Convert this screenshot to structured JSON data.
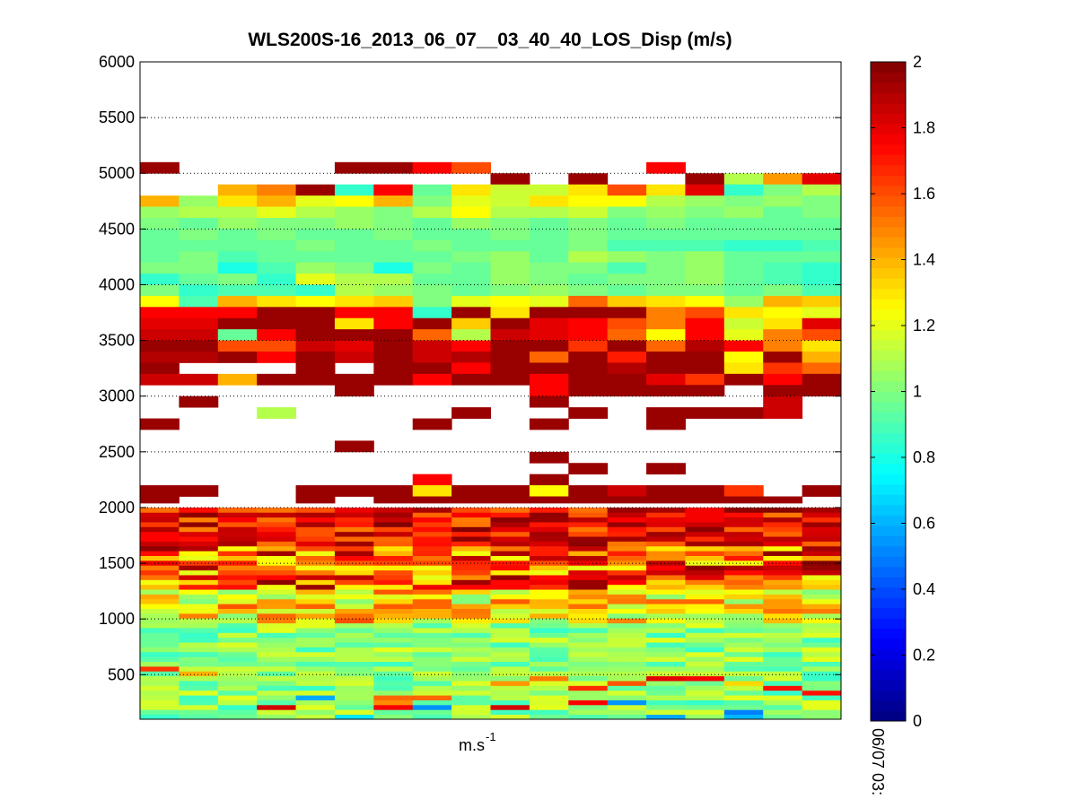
{
  "chart_data": {
    "type": "heatmap",
    "title": "WLS200S-16_2013_06_07__03_40_40_LOS_Disp (m/s)",
    "xlabel": "m.s",
    "xlabel_sup": "-1",
    "time_label": "06/07 03:",
    "ylabel": "",
    "ylim": [
      100,
      6000
    ],
    "yticks": [
      500,
      1000,
      1500,
      2000,
      2500,
      3000,
      3500,
      4000,
      4500,
      5000,
      5500,
      6000
    ],
    "grid": "dotted horizontal",
    "colorbar": {
      "min": 0,
      "max": 2,
      "ticks": [
        "0",
        "0.2",
        "0.4",
        "0.6",
        "0.8",
        "1",
        "1.2",
        "1.4",
        "1.6",
        "1.8",
        "2"
      ],
      "colormap": "jet"
    },
    "columns": 18,
    "rows": [
      {
        "z": 5050,
        "dz": 100,
        "v": [
          1.95,
          null,
          null,
          null,
          null,
          1.95,
          1.95,
          1.75,
          1.6,
          null,
          null,
          null,
          null,
          1.75,
          null,
          null,
          null,
          null
        ]
      },
      {
        "z": 4950,
        "dz": 100,
        "v": [
          null,
          null,
          null,
          null,
          null,
          null,
          null,
          null,
          null,
          1.95,
          null,
          1.95,
          null,
          null,
          1.95,
          1.1,
          1.45,
          1.8
        ]
      },
      {
        "z": 4850,
        "dz": 100,
        "v": [
          null,
          null,
          1.4,
          1.5,
          1.95,
          0.85,
          1.75,
          0.95,
          1.3,
          1.15,
          1.15,
          1.3,
          1.6,
          1.3,
          1.8,
          0.85,
          1.0,
          1.1
        ]
      },
      {
        "z": 4750,
        "dz": 100,
        "v": [
          1.4,
          1.05,
          1.3,
          1.4,
          1.2,
          1.25,
          1.4,
          1.0,
          1.2,
          1.15,
          1.3,
          1.25,
          1.25,
          1.1,
          1.05,
          1.0,
          1.05,
          1.0
        ]
      },
      {
        "z": 4650,
        "dz": 100,
        "v": [
          1.05,
          1.1,
          1.1,
          1.2,
          1.1,
          1.05,
          1.0,
          1.1,
          1.25,
          1.1,
          1.1,
          1.15,
          1.0,
          1.05,
          1.0,
          1.05,
          0.95,
          1.0
        ]
      },
      {
        "z": 4550,
        "dz": 100,
        "v": [
          1.0,
          0.95,
          1.05,
          1.0,
          1.0,
          1.05,
          1.0,
          0.95,
          1.05,
          1.0,
          0.95,
          1.0,
          0.95,
          1.0,
          0.95,
          0.95,
          0.95,
          0.95
        ]
      },
      {
        "z": 4450,
        "dz": 100,
        "v": [
          0.95,
          1.0,
          0.95,
          1.0,
          0.95,
          0.95,
          1.0,
          0.95,
          0.95,
          1.0,
          0.95,
          1.0,
          0.95,
          0.95,
          0.95,
          0.95,
          0.95,
          0.95
        ]
      },
      {
        "z": 4350,
        "dz": 100,
        "v": [
          0.95,
          0.95,
          0.95,
          0.95,
          1.0,
          0.95,
          0.95,
          1.0,
          0.95,
          0.95,
          0.95,
          1.0,
          0.9,
          0.9,
          0.9,
          0.85,
          0.85,
          0.9
        ]
      },
      {
        "z": 4250,
        "dz": 100,
        "v": [
          0.95,
          1.0,
          0.9,
          0.95,
          0.95,
          0.95,
          0.95,
          0.95,
          1.0,
          1.05,
          0.95,
          1.1,
          1.05,
          1.0,
          1.05,
          0.95,
          0.95,
          0.95
        ]
      },
      {
        "z": 4150,
        "dz": 100,
        "v": [
          1.0,
          1.0,
          0.8,
          0.9,
          1.05,
          1.0,
          0.8,
          1.0,
          0.95,
          1.05,
          1.0,
          1.0,
          0.9,
          1.0,
          1.05,
          0.95,
          0.9,
          0.85
        ]
      },
      {
        "z": 4050,
        "dz": 100,
        "v": [
          0.85,
          0.95,
          1.0,
          0.85,
          1.2,
          1.1,
          1.1,
          0.95,
          0.95,
          1.05,
          1.0,
          0.95,
          1.0,
          1.0,
          1.05,
          0.95,
          0.9,
          0.85
        ]
      },
      {
        "z": 3950,
        "dz": 100,
        "v": [
          1.0,
          0.85,
          0.9,
          0.9,
          0.85,
          1.1,
          1.05,
          1.0,
          0.95,
          1.0,
          1.05,
          1.0,
          0.95,
          1.0,
          1.0,
          0.95,
          1.0,
          0.9
        ]
      },
      {
        "z": 3850,
        "dz": 100,
        "v": [
          1.25,
          0.9,
          1.4,
          1.3,
          1.25,
          1.3,
          1.35,
          1.0,
          1.2,
          1.25,
          1.2,
          1.55,
          1.35,
          1.3,
          1.25,
          1.05,
          1.4,
          1.35
        ]
      },
      {
        "z": 3750,
        "dz": 100,
        "v": [
          1.75,
          1.75,
          1.75,
          1.95,
          1.95,
          1.75,
          1.75,
          0.85,
          1.95,
          1.3,
          1.95,
          1.95,
          1.95,
          1.5,
          1.6,
          1.3,
          1.25,
          1.2
        ]
      },
      {
        "z": 3650,
        "dz": 100,
        "v": [
          1.8,
          1.8,
          1.95,
          1.95,
          1.95,
          1.3,
          1.75,
          1.95,
          1.35,
          1.95,
          1.8,
          1.75,
          1.6,
          1.5,
          1.75,
          1.15,
          1.3,
          1.8
        ]
      },
      {
        "z": 3550,
        "dz": 100,
        "v": [
          1.85,
          1.85,
          0.95,
          1.75,
          1.95,
          1.95,
          1.95,
          1.55,
          1.1,
          1.85,
          1.8,
          1.75,
          1.55,
          1.25,
          1.75,
          1.2,
          1.5,
          1.6
        ]
      },
      {
        "z": 3450,
        "dz": 100,
        "v": [
          1.95,
          1.95,
          1.6,
          1.6,
          1.85,
          1.8,
          1.95,
          1.85,
          1.75,
          1.95,
          1.95,
          1.65,
          1.95,
          1.55,
          1.9,
          1.75,
          1.5,
          1.3
        ]
      },
      {
        "z": 3350,
        "dz": 100,
        "v": [
          1.9,
          1.9,
          1.95,
          1.75,
          1.95,
          1.85,
          1.95,
          1.85,
          1.9,
          1.95,
          1.55,
          1.95,
          1.7,
          1.95,
          1.95,
          1.25,
          1.95,
          1.4
        ]
      },
      {
        "z": 3250,
        "dz": 100,
        "v": [
          1.95,
          null,
          null,
          null,
          1.95,
          null,
          1.95,
          1.95,
          1.75,
          1.95,
          1.95,
          1.95,
          1.9,
          1.95,
          1.95,
          1.3,
          1.65,
          1.55
        ]
      },
      {
        "z": 3150,
        "dz": 100,
        "v": [
          1.85,
          1.85,
          1.4,
          1.95,
          1.95,
          1.95,
          1.95,
          1.75,
          1.95,
          1.95,
          1.75,
          1.95,
          1.95,
          1.8,
          1.65,
          1.95,
          1.75,
          1.95
        ]
      },
      {
        "z": 3050,
        "dz": 100,
        "v": [
          null,
          null,
          null,
          null,
          null,
          1.95,
          null,
          null,
          null,
          null,
          1.75,
          1.95,
          1.95,
          1.95,
          1.95,
          null,
          1.95,
          1.95
        ]
      },
      {
        "z": 2950,
        "dz": 100,
        "v": [
          null,
          1.95,
          null,
          null,
          null,
          null,
          null,
          null,
          null,
          null,
          1.95,
          null,
          null,
          null,
          null,
          null,
          1.85,
          null
        ]
      },
      {
        "z": 2850,
        "dz": 100,
        "v": [
          null,
          null,
          null,
          1.1,
          null,
          null,
          null,
          null,
          1.95,
          null,
          null,
          1.95,
          null,
          1.95,
          1.95,
          1.95,
          1.85,
          null
        ]
      },
      {
        "z": 2750,
        "dz": 100,
        "v": [
          1.95,
          null,
          null,
          null,
          null,
          null,
          null,
          1.95,
          null,
          null,
          1.95,
          null,
          null,
          1.95,
          null,
          null,
          null,
          null
        ]
      },
      {
        "z": 2550,
        "dz": 100,
        "v": [
          null,
          null,
          null,
          null,
          null,
          1.95,
          null,
          null,
          null,
          null,
          null,
          null,
          null,
          null,
          null,
          null,
          null,
          null
        ]
      },
      {
        "z": 2450,
        "dz": 100,
        "v": [
          null,
          null,
          null,
          null,
          null,
          null,
          null,
          null,
          null,
          null,
          1.95,
          null,
          null,
          null,
          null,
          null,
          null,
          null
        ]
      },
      {
        "z": 2350,
        "dz": 100,
        "v": [
          null,
          null,
          null,
          null,
          null,
          null,
          null,
          null,
          null,
          null,
          null,
          1.95,
          null,
          1.95,
          null,
          null,
          null,
          null
        ]
      }
    ],
    "bands": [
      {
        "z": 2000,
        "dz": 2000,
        "palette": "lowband",
        "rows": 44
      }
    ],
    "low_layers": [
      {
        "z": 2250,
        "dz": 100,
        "v": [
          null,
          null,
          null,
          null,
          null,
          null,
          null,
          1.75,
          null,
          null,
          1.95,
          null,
          null,
          null,
          null,
          null,
          null,
          null
        ]
      },
      {
        "z": 2150,
        "dz": 100,
        "v": [
          1.95,
          1.95,
          null,
          null,
          1.95,
          1.95,
          1.95,
          1.3,
          1.95,
          1.95,
          1.25,
          1.95,
          1.85,
          1.95,
          1.95,
          1.65,
          null,
          1.95
        ]
      },
      {
        "z": 2070,
        "dz": 60,
        "v": [
          1.95,
          null,
          null,
          null,
          1.95,
          null,
          1.95,
          1.95,
          1.95,
          1.95,
          1.95,
          1.95,
          1.95,
          1.95,
          1.95,
          1.95,
          1.95,
          null
        ]
      }
    ]
  }
}
